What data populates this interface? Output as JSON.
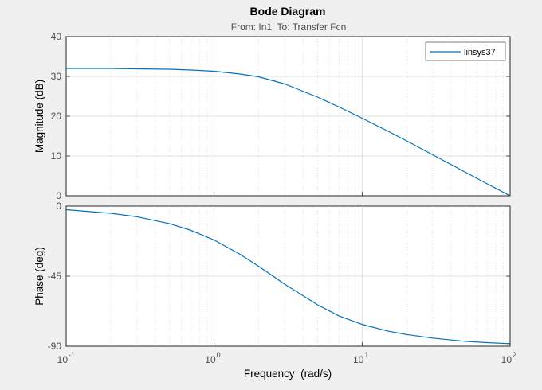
{
  "chart_data": {
    "type": "line",
    "title": "Bode Diagram",
    "subtitle": "From: In1  To: Transfer Fcn",
    "xlabel": "Frequency  (rad/s)",
    "xscale": "log",
    "xlim": [
      0.1,
      100
    ],
    "x_ticks": [
      {
        "base": "10",
        "exp": "-1",
        "value": 0.1
      },
      {
        "base": "10",
        "exp": "0",
        "value": 1
      },
      {
        "base": "10",
        "exp": "1",
        "value": 10
      },
      {
        "base": "10",
        "exp": "2",
        "value": 100
      }
    ],
    "grid": true,
    "legend": {
      "placement": "top-right",
      "entries": [
        "linsys37"
      ]
    },
    "panels": [
      {
        "name": "magnitude",
        "ylabel": "Magnitude (dB)",
        "ylim": [
          0,
          40
        ],
        "y_ticks": [
          {
            "label": "40",
            "value": 40
          },
          {
            "label": "30",
            "value": 30
          },
          {
            "label": "20",
            "value": 20
          },
          {
            "label": "10",
            "value": 10
          },
          {
            "label": "0",
            "value": 0
          }
        ],
        "series": [
          {
            "name": "linsys37",
            "x": [
              0.1,
              0.2,
              0.3,
              0.5,
              0.7,
              1,
              1.5,
              2,
              3,
              5,
              7,
              10,
              15,
              20,
              30,
              50,
              70,
              100
            ],
            "y": [
              32.0,
              32.0,
              31.9,
              31.8,
              31.6,
              31.3,
              30.6,
              29.9,
              28.1,
              24.8,
              22.3,
              19.5,
              16.2,
              13.8,
              10.3,
              5.9,
              3.0,
              0.0
            ]
          }
        ]
      },
      {
        "name": "phase",
        "ylabel": "Phase (deg)",
        "ylim": [
          -90,
          0
        ],
        "y_ticks": [
          {
            "label": "0",
            "value": 0
          },
          {
            "label": "-45",
            "value": -45
          },
          {
            "label": "-90",
            "value": -90
          }
        ],
        "series": [
          {
            "name": "linsys37",
            "x": [
              0.1,
              0.2,
              0.3,
              0.5,
              0.7,
              1,
              1.5,
              2,
              3,
              5,
              7,
              10,
              15,
              20,
              30,
              50,
              70,
              100
            ],
            "y": [
              -2.3,
              -4.6,
              -6.8,
              -11.3,
              -15.6,
              -21.8,
              -31.0,
              -38.7,
              -50.2,
              -63.4,
              -70.6,
              -76.0,
              -80.3,
              -82.5,
              -84.8,
              -86.9,
              -87.7,
              -88.4
            ]
          }
        ]
      }
    ]
  },
  "colors": {
    "line": "#0072bd",
    "axes_bg": "#ffffff",
    "figure_bg": "#f0f0f0",
    "grid_major": "#d9d9d9",
    "grid_minor": "#d4d4d4",
    "axis": "#262626"
  }
}
